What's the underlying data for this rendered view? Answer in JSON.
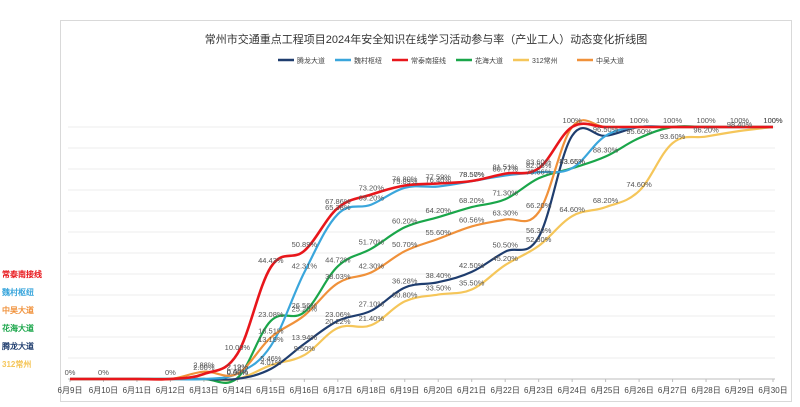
{
  "chart_data": {
    "type": "line",
    "title": "常州市交通重点工程项目2024年安全知识在线学习活动参与率（产业工人）动态变化折线图",
    "xlabel": "",
    "ylabel": "",
    "x": [
      "6月9日",
      "6月10日",
      "6月11日",
      "6月12日",
      "6月13日",
      "6月14日",
      "6月15日",
      "6月16日",
      "6月17日",
      "6月18日",
      "6月19日",
      "6月20日",
      "6月21日",
      "6月22日",
      "6月23日",
      "6月24日",
      "6月25日",
      "6月26日",
      "6月27日",
      "6月28日",
      "6月29日",
      "6月30日"
    ],
    "ylim": [
      0,
      100
    ],
    "grid": true,
    "legend_position": "top",
    "series": [
      {
        "name": "腾龙大道",
        "color": "#1f3d6e",
        "values": [
          0,
          0,
          0,
          0,
          0,
          0.09,
          4.01,
          13.94,
          23.06,
          27.1,
          36.28,
          38.4,
          42.5,
          50.5,
          56.3,
          96.5,
          96.5,
          100,
          100,
          100,
          100,
          100
        ],
        "labels": [
          "",
          "",
          "",
          "",
          "",
          "0.09%",
          "4.01%",
          "13.94%",
          "23.06%",
          "27.10%",
          "36.28%",
          "38.40%",
          "42.50%",
          "50.50%",
          "56.30%",
          "",
          "96.50%",
          "",
          "",
          "",
          "",
          ""
        ]
      },
      {
        "name": "魏村枢纽",
        "color": "#3aa6dc",
        "values": [
          0,
          0,
          0,
          0,
          0,
          2.19,
          13.19,
          42.31,
          65.38,
          69.2,
          75.89,
          76.4,
          78.5,
          80.77,
          82.08,
          83.65,
          96.5,
          100,
          100,
          100,
          100,
          100
        ],
        "labels": [
          "",
          "",
          "",
          "",
          "",
          "2.19%",
          "13.19%",
          "42.31%",
          "65.38%",
          "69.20%",
          "75.89%",
          "76.40%",
          "78.50%",
          "80.77%",
          "82.08%",
          "83.65%",
          "",
          "",
          "",
          "",
          "",
          ""
        ]
      },
      {
        "name": "常泰南接线",
        "color": "#e8161b",
        "values": [
          0,
          0,
          0,
          0,
          2.0,
          10.0,
          44.43,
          50.89,
          67.86,
          73.2,
          76.8,
          77.59,
          78.57,
          81.51,
          83.6,
          100,
          100,
          100,
          100,
          100,
          100,
          100
        ],
        "labels": [
          "0%",
          "0%",
          "",
          "0%",
          "2.00%",
          "10.00%",
          "44.43%",
          "50.89%",
          "67.86%",
          "73.20%",
          "76.80%",
          "77.59%",
          "78.57%",
          "81.51%",
          "83.60%",
          "100%",
          "100%",
          "100%",
          "100%",
          "100%",
          "100%",
          "100%"
        ]
      },
      {
        "name": "花海大道",
        "color": "#1aa64a",
        "values": [
          0,
          0,
          0,
          0,
          0,
          0.4,
          23.08,
          26.56,
          44.72,
          51.7,
          60.2,
          64.2,
          68.2,
          71.3,
          79.66,
          83.66,
          88.3,
          95.6,
          100,
          100,
          100,
          100
        ],
        "labels": [
          "",
          "",
          "",
          "",
          "",
          "0.40%",
          "23.08%",
          "26.56%",
          "44.72%",
          "51.70%",
          "60.20%",
          "64.20%",
          "68.20%",
          "71.30%",
          "79.66%",
          "83.66%",
          "88.30%",
          "95.60%",
          "",
          "",
          "",
          ""
        ]
      },
      {
        "name": "312常州",
        "color": "#f5c65a",
        "values": [
          0,
          0,
          0,
          0,
          0,
          0,
          5.46,
          9.5,
          20.22,
          21.4,
          30.8,
          33.5,
          35.5,
          45.2,
          52.8,
          64.6,
          68.2,
          74.6,
          93.6,
          96.2,
          98.4,
          100
        ],
        "labels": [
          "",
          "",
          "",
          "",
          "",
          "0.00%",
          "5.46%",
          "9.50%",
          "20.22%",
          "21.40%",
          "30.80%",
          "33.50%",
          "35.50%",
          "45.20%",
          "52.80%",
          "64.60%",
          "68.20%",
          "74.60%",
          "93.60%",
          "96.20%",
          "98.40%",
          ""
        ]
      },
      {
        "name": "中吴大道",
        "color": "#f0913a",
        "values": [
          0,
          0,
          0,
          0,
          2.88,
          2.12,
          16.51,
          25.2,
          38.03,
          42.3,
          50.7,
          55.6,
          60.56,
          63.3,
          66.2,
          100,
          100,
          100,
          100,
          100,
          100,
          100
        ],
        "labels": [
          "",
          "",
          "",
          "",
          "2.88%",
          "2.12%",
          "16.51%",
          "25.20%",
          "38.03%",
          "42.30%",
          "50.70%",
          "55.60%",
          "60.56%",
          "63.30%",
          "66.20%",
          "",
          "",
          "",
          "",
          "",
          "",
          "100%"
        ]
      }
    ]
  },
  "side_legend": [
    {
      "text": "常泰南接线",
      "color": "#e8161b"
    },
    {
      "text": "魏村枢纽",
      "color": "#3aa6dc"
    },
    {
      "text": "中吴大道",
      "color": "#f0913a"
    },
    {
      "text": "花海大道",
      "color": "#1aa64a"
    },
    {
      "text": "腾龙大道",
      "color": "#1f3d6e"
    },
    {
      "text": "312常州",
      "color": "#f5c65a"
    }
  ]
}
